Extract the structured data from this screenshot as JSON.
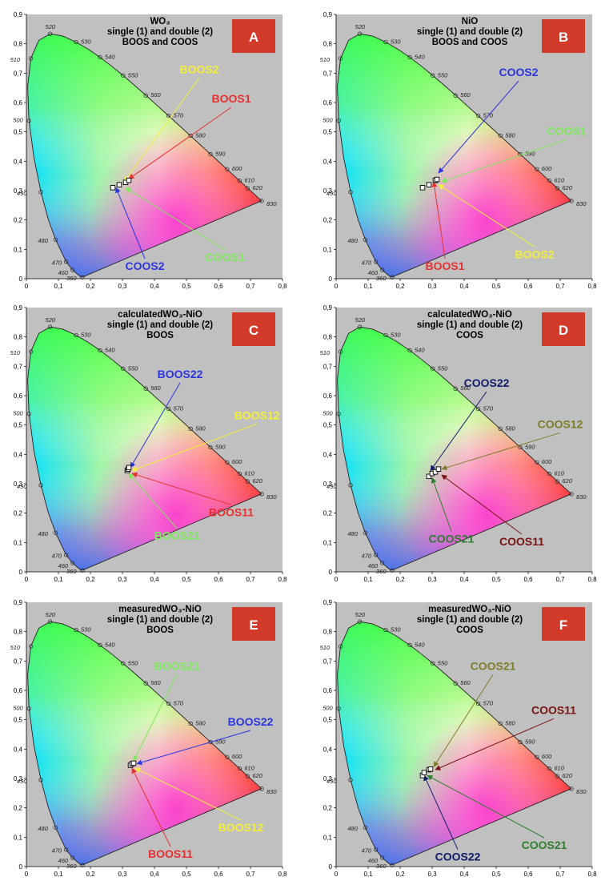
{
  "chart_data": [
    {
      "type": "scatter",
      "panel_letter": "A",
      "title_lines": [
        "WO₃",
        "single (1) and double (2)",
        "BOOS and COOS"
      ],
      "xlim": [
        0,
        0.8
      ],
      "ylim": [
        0,
        0.9
      ],
      "x_ticks": [
        "0",
        "0,1",
        "0,2",
        "0,3",
        "0,4",
        "0,5",
        "0,6",
        "0,7",
        "0,8"
      ],
      "y_ticks": [
        "0",
        "0,1",
        "0,2",
        "0,3",
        "0,4",
        "0,5",
        "0,6",
        "0,7",
        "0,8",
        "0,9"
      ],
      "grid": false,
      "points": [
        {
          "x": 0.27,
          "y": 0.31
        },
        {
          "x": 0.29,
          "y": 0.32
        },
        {
          "x": 0.31,
          "y": 0.328
        },
        {
          "x": 0.32,
          "y": 0.335
        }
      ],
      "annotations": [
        {
          "text": "BOOS2",
          "color": "#f2ef3a",
          "label_x": 0.54,
          "label_y": 0.7,
          "target_x": 0.305,
          "target_y": 0.33
        },
        {
          "text": "BOOS1",
          "color": "#e83030",
          "label_x": 0.64,
          "label_y": 0.6,
          "target_x": 0.32,
          "target_y": 0.34
        },
        {
          "text": "COOS2",
          "color": "#2b35e0",
          "label_x": 0.37,
          "label_y": 0.03,
          "target_x": 0.28,
          "target_y": 0.31
        },
        {
          "text": "COOS1",
          "color": "#7ee85c",
          "label_x": 0.62,
          "label_y": 0.06,
          "target_x": 0.31,
          "target_y": 0.31
        }
      ]
    },
    {
      "type": "scatter",
      "panel_letter": "B",
      "title_lines": [
        "NiO",
        "single (1) and double (2)",
        "BOOS and COOS"
      ],
      "xlim": [
        0,
        0.8
      ],
      "ylim": [
        0,
        0.9
      ],
      "x_ticks": [
        "0",
        "0,1",
        "0,2",
        "0,3",
        "0,4",
        "0,5",
        "0,6",
        "0,7",
        "0,8"
      ],
      "y_ticks": [
        "0",
        "0,1",
        "0,2",
        "0,3",
        "0,4",
        "0,5",
        "0,6",
        "0,7",
        "0,8",
        "0,9"
      ],
      "grid": false,
      "points": [
        {
          "x": 0.27,
          "y": 0.31
        },
        {
          "x": 0.29,
          "y": 0.32
        },
        {
          "x": 0.31,
          "y": 0.335
        },
        {
          "x": 0.315,
          "y": 0.338
        }
      ],
      "annotations": [
        {
          "text": "COOS2",
          "color": "#2b35e0",
          "label_x": 0.57,
          "label_y": 0.69,
          "target_x": 0.32,
          "target_y": 0.36
        },
        {
          "text": "COOS1",
          "color": "#7ee85c",
          "label_x": 0.72,
          "label_y": 0.49,
          "target_x": 0.33,
          "target_y": 0.33
        },
        {
          "text": "BOOS1",
          "color": "#e83030",
          "label_x": 0.34,
          "label_y": 0.03,
          "target_x": 0.305,
          "target_y": 0.33
        },
        {
          "text": "BOOS2",
          "color": "#f2ef3a",
          "label_x": 0.62,
          "label_y": 0.07,
          "target_x": 0.32,
          "target_y": 0.32
        }
      ]
    },
    {
      "type": "scatter",
      "panel_letter": "C",
      "title_lines": [
        "calculatedWO₃-NiO",
        "single (1) and double (2)",
        "BOOS"
      ],
      "xlim": [
        0,
        0.8
      ],
      "ylim": [
        0,
        0.9
      ],
      "x_ticks": [
        "0",
        "0,1",
        "0,2",
        "0,3",
        "0,4",
        "0,5",
        "0,6",
        "0,7",
        "0,8"
      ],
      "y_ticks": [
        "0",
        "0,1",
        "0,2",
        "0,3",
        "0,4",
        "0,5",
        "0,6",
        "0,7",
        "0,8",
        "0,9"
      ],
      "grid": false,
      "points": [
        {
          "x": 0.315,
          "y": 0.345
        },
        {
          "x": 0.318,
          "y": 0.35
        },
        {
          "x": 0.32,
          "y": 0.355
        }
      ],
      "annotations": [
        {
          "text": "BOOS22",
          "color": "#2b35e0",
          "label_x": 0.48,
          "label_y": 0.66,
          "target_x": 0.325,
          "target_y": 0.355
        },
        {
          "text": "BOOS12",
          "color": "#f2ef3a",
          "label_x": 0.72,
          "label_y": 0.52,
          "target_x": 0.33,
          "target_y": 0.345
        },
        {
          "text": "BOOS11",
          "color": "#e83030",
          "label_x": 0.64,
          "label_y": 0.19,
          "target_x": 0.33,
          "target_y": 0.335
        },
        {
          "text": "BOOS21",
          "color": "#7ee85c",
          "label_x": 0.47,
          "label_y": 0.11,
          "target_x": 0.32,
          "target_y": 0.335
        }
      ]
    },
    {
      "type": "scatter",
      "panel_letter": "D",
      "title_lines": [
        "calculatedWO₃-NiO",
        "single (1) and double (2)",
        "COOS"
      ],
      "xlim": [
        0,
        0.8
      ],
      "ylim": [
        0,
        0.9
      ],
      "x_ticks": [
        "0",
        "0,1",
        "0,2",
        "0,3",
        "0,4",
        "0,5",
        "0,6",
        "0,7",
        "0,8"
      ],
      "y_ticks": [
        "0",
        "0,1",
        "0,2",
        "0,3",
        "0,4",
        "0,5",
        "0,6",
        "0,7",
        "0,8",
        "0,9"
      ],
      "grid": false,
      "points": [
        {
          "x": 0.29,
          "y": 0.325
        },
        {
          "x": 0.3,
          "y": 0.335
        },
        {
          "x": 0.31,
          "y": 0.34
        },
        {
          "x": 0.32,
          "y": 0.35
        }
      ],
      "annotations": [
        {
          "text": "COOS22",
          "color": "#101b6b",
          "label_x": 0.47,
          "label_y": 0.63,
          "target_x": 0.295,
          "target_y": 0.345
        },
        {
          "text": "COOS12",
          "color": "#7f7d2a",
          "label_x": 0.7,
          "label_y": 0.49,
          "target_x": 0.33,
          "target_y": 0.35
        },
        {
          "text": "COOS11",
          "color": "#7a1414",
          "label_x": 0.58,
          "label_y": 0.09,
          "target_x": 0.33,
          "target_y": 0.33
        },
        {
          "text": "COOS21",
          "color": "#2f7d2f",
          "label_x": 0.36,
          "label_y": 0.1,
          "target_x": 0.3,
          "target_y": 0.32
        }
      ]
    },
    {
      "type": "scatter",
      "panel_letter": "E",
      "title_lines": [
        "measuredWO₃-NiO",
        "single (1) and double (2)",
        "BOOS"
      ],
      "xlim": [
        0,
        0.8
      ],
      "ylim": [
        0,
        0.9
      ],
      "x_ticks": [
        "0",
        "0,1",
        "0,2",
        "0,3",
        "0,4",
        "0,5",
        "0,6",
        "0,7",
        "0,8"
      ],
      "y_ticks": [
        "0",
        "0,1",
        "0,2",
        "0,3",
        "0,4",
        "0,5",
        "0,6",
        "0,7",
        "0,8",
        "0,9"
      ],
      "grid": false,
      "points": [
        {
          "x": 0.325,
          "y": 0.345
        },
        {
          "x": 0.33,
          "y": 0.35
        },
        {
          "x": 0.335,
          "y": 0.352
        }
      ],
      "annotations": [
        {
          "text": "BOOS21",
          "color": "#7ee85c",
          "label_x": 0.47,
          "label_y": 0.67,
          "target_x": 0.335,
          "target_y": 0.36
        },
        {
          "text": "BOOS22",
          "color": "#2b35e0",
          "label_x": 0.7,
          "label_y": 0.48,
          "target_x": 0.345,
          "target_y": 0.35
        },
        {
          "text": "BOOS12",
          "color": "#f2ef3a",
          "label_x": 0.67,
          "label_y": 0.12,
          "target_x": 0.34,
          "target_y": 0.335
        },
        {
          "text": "BOOS11",
          "color": "#e83030",
          "label_x": 0.45,
          "label_y": 0.03,
          "target_x": 0.33,
          "target_y": 0.335
        }
      ]
    },
    {
      "type": "scatter",
      "panel_letter": "F",
      "title_lines": [
        "measuredWO₃-NiO",
        "single (1) and double (2)",
        "COOS"
      ],
      "xlim": [
        0,
        0.8
      ],
      "ylim": [
        0,
        0.9
      ],
      "x_ticks": [
        "0",
        "0,1",
        "0,2",
        "0,3",
        "0,4",
        "0,5",
        "0,6",
        "0,7",
        "0,8"
      ],
      "y_ticks": [
        "0",
        "0,1",
        "0,2",
        "0,3",
        "0,4",
        "0,5",
        "0,6",
        "0,7",
        "0,8",
        "0,9"
      ],
      "grid": false,
      "points": [
        {
          "x": 0.27,
          "y": 0.31
        },
        {
          "x": 0.275,
          "y": 0.32
        },
        {
          "x": 0.29,
          "y": 0.33
        },
        {
          "x": 0.295,
          "y": 0.332
        }
      ],
      "annotations": [
        {
          "text": "COOS21",
          "color": "#7f7d2a",
          "label_x": 0.49,
          "label_y": 0.67,
          "target_x": 0.305,
          "target_y": 0.34
        },
        {
          "text": "COOS11",
          "color": "#7a1414",
          "label_x": 0.68,
          "label_y": 0.52,
          "target_x": 0.31,
          "target_y": 0.33
        },
        {
          "text": "COOS22",
          "color": "#101b6b",
          "label_x": 0.38,
          "label_y": 0.02,
          "target_x": 0.275,
          "target_y": 0.31
        },
        {
          "text": "COOS21",
          "color": "#2f7d2f",
          "label_x": 0.65,
          "label_y": 0.06,
          "target_x": 0.285,
          "target_y": 0.31
        }
      ]
    }
  ],
  "locus_labels": [
    "360",
    "460",
    "470",
    "480",
    "490",
    "500",
    "510",
    "520",
    "530",
    "540",
    "550",
    "560",
    "570",
    "580",
    "590",
    "600",
    "610",
    "620",
    "830"
  ],
  "colors": {
    "plot_background": "#c0c0c0",
    "badge_fill": "#d23a2a",
    "badge_text": "#ffffff",
    "point_stroke": "#000000"
  }
}
